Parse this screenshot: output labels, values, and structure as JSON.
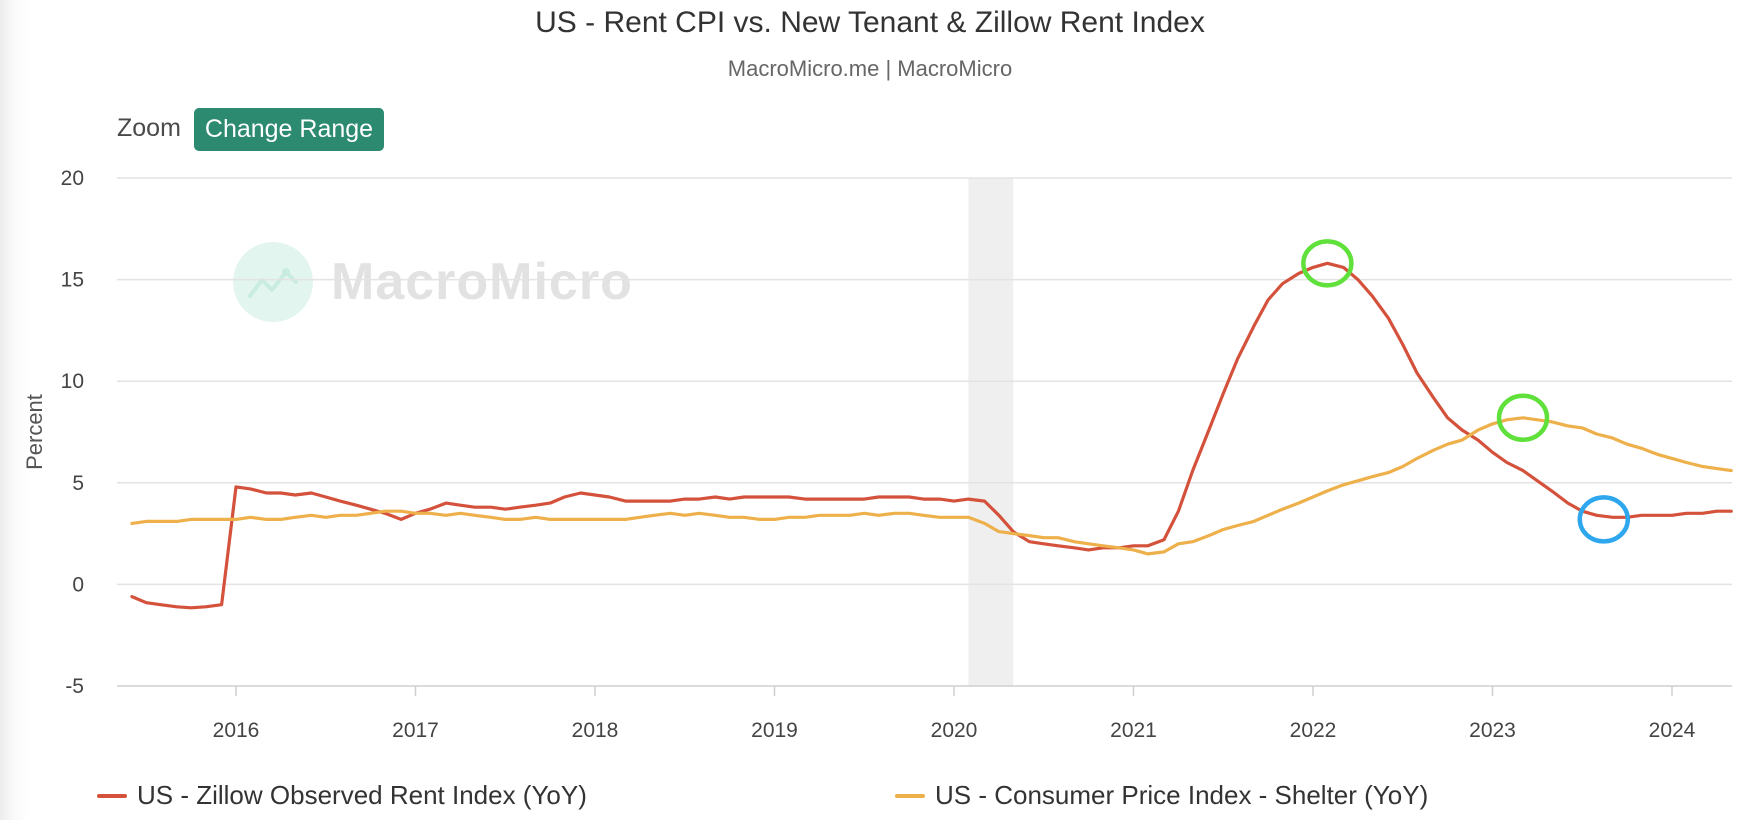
{
  "colors": {
    "zillow": "#d4513b",
    "cpi": "#eeb04a",
    "button": "#2b8a70",
    "highlight_green": "#5fe03a",
    "highlight_blue": "#2fa7ee",
    "recession_band": "#efefef"
  },
  "toolbar": {
    "zoom_label": "Zoom",
    "change_range_label": "Change Range"
  },
  "watermark": {
    "text": "MacroMicro"
  },
  "chart_data": {
    "type": "line",
    "title": "US - Rent CPI vs. New Tenant & Zillow Rent Index",
    "subtitle": "MacroMicro.me | MacroMicro",
    "xlabel": "",
    "ylabel": "Percent",
    "xlim": [
      2015.33,
      2024.33
    ],
    "ylim": [
      -5,
      20
    ],
    "yticks": [
      20,
      15,
      10,
      5,
      0,
      -5
    ],
    "xticks": [
      "2016",
      "2017",
      "2018",
      "2019",
      "2020",
      "2021",
      "2022",
      "2023",
      "2024"
    ],
    "grid": true,
    "legend_position": "bottom",
    "recession_band": [
      2020.08,
      2020.33
    ],
    "highlights": [
      {
        "series": "US - Zillow Observed Rent Index (YoY)",
        "x": 2022.08,
        "y": 15.8,
        "color": "green"
      },
      {
        "series": "US - Consumer Price Index - Shelter (YoY)",
        "x": 2023.17,
        "y": 8.2,
        "color": "green"
      },
      {
        "series": "US - Zillow Observed Rent Index (YoY)",
        "x": 2023.62,
        "y": 3.2,
        "color": "blue"
      }
    ],
    "series": [
      {
        "name": "US - Zillow Observed Rent Index (YoY)",
        "color": "#d4513b",
        "points": [
          [
            2015.42,
            -0.6
          ],
          [
            2015.5,
            -0.9
          ],
          [
            2015.58,
            -1.0
          ],
          [
            2015.67,
            -1.1
          ],
          [
            2015.75,
            -1.15
          ],
          [
            2015.83,
            -1.1
          ],
          [
            2015.92,
            -1.0
          ],
          [
            2016.0,
            4.8
          ],
          [
            2016.08,
            4.7
          ],
          [
            2016.17,
            4.5
          ],
          [
            2016.25,
            4.5
          ],
          [
            2016.33,
            4.4
          ],
          [
            2016.42,
            4.5
          ],
          [
            2016.5,
            4.3
          ],
          [
            2016.58,
            4.1
          ],
          [
            2016.67,
            3.9
          ],
          [
            2016.75,
            3.7
          ],
          [
            2016.83,
            3.5
          ],
          [
            2016.92,
            3.2
          ],
          [
            2017.0,
            3.5
          ],
          [
            2017.08,
            3.7
          ],
          [
            2017.17,
            4.0
          ],
          [
            2017.25,
            3.9
          ],
          [
            2017.33,
            3.8
          ],
          [
            2017.42,
            3.8
          ],
          [
            2017.5,
            3.7
          ],
          [
            2017.58,
            3.8
          ],
          [
            2017.67,
            3.9
          ],
          [
            2017.75,
            4.0
          ],
          [
            2017.83,
            4.3
          ],
          [
            2017.92,
            4.5
          ],
          [
            2018.0,
            4.4
          ],
          [
            2018.08,
            4.3
          ],
          [
            2018.17,
            4.1
          ],
          [
            2018.25,
            4.1
          ],
          [
            2018.33,
            4.1
          ],
          [
            2018.42,
            4.1
          ],
          [
            2018.5,
            4.2
          ],
          [
            2018.58,
            4.2
          ],
          [
            2018.67,
            4.3
          ],
          [
            2018.75,
            4.2
          ],
          [
            2018.83,
            4.3
          ],
          [
            2018.92,
            4.3
          ],
          [
            2019.0,
            4.3
          ],
          [
            2019.08,
            4.3
          ],
          [
            2019.17,
            4.2
          ],
          [
            2019.25,
            4.2
          ],
          [
            2019.33,
            4.2
          ],
          [
            2019.42,
            4.2
          ],
          [
            2019.5,
            4.2
          ],
          [
            2019.58,
            4.3
          ],
          [
            2019.67,
            4.3
          ],
          [
            2019.75,
            4.3
          ],
          [
            2019.83,
            4.2
          ],
          [
            2019.92,
            4.2
          ],
          [
            2020.0,
            4.1
          ],
          [
            2020.08,
            4.2
          ],
          [
            2020.17,
            4.1
          ],
          [
            2020.25,
            3.4
          ],
          [
            2020.33,
            2.6
          ],
          [
            2020.42,
            2.1
          ],
          [
            2020.5,
            2.0
          ],
          [
            2020.58,
            1.9
          ],
          [
            2020.67,
            1.8
          ],
          [
            2020.75,
            1.7
          ],
          [
            2020.83,
            1.8
          ],
          [
            2020.92,
            1.8
          ],
          [
            2021.0,
            1.9
          ],
          [
            2021.08,
            1.9
          ],
          [
            2021.17,
            2.2
          ],
          [
            2021.25,
            3.6
          ],
          [
            2021.33,
            5.6
          ],
          [
            2021.42,
            7.6
          ],
          [
            2021.5,
            9.4
          ],
          [
            2021.58,
            11.1
          ],
          [
            2021.67,
            12.7
          ],
          [
            2021.75,
            14.0
          ],
          [
            2021.83,
            14.8
          ],
          [
            2021.92,
            15.3
          ],
          [
            2022.0,
            15.6
          ],
          [
            2022.08,
            15.8
          ],
          [
            2022.17,
            15.6
          ],
          [
            2022.25,
            15.0
          ],
          [
            2022.33,
            14.2
          ],
          [
            2022.42,
            13.1
          ],
          [
            2022.5,
            11.8
          ],
          [
            2022.58,
            10.4
          ],
          [
            2022.67,
            9.2
          ],
          [
            2022.75,
            8.2
          ],
          [
            2022.83,
            7.6
          ],
          [
            2022.92,
            7.1
          ],
          [
            2023.0,
            6.5
          ],
          [
            2023.08,
            6.0
          ],
          [
            2023.17,
            5.6
          ],
          [
            2023.25,
            5.1
          ],
          [
            2023.33,
            4.6
          ],
          [
            2023.42,
            4.0
          ],
          [
            2023.5,
            3.6
          ],
          [
            2023.58,
            3.4
          ],
          [
            2023.67,
            3.3
          ],
          [
            2023.75,
            3.3
          ],
          [
            2023.83,
            3.4
          ],
          [
            2023.92,
            3.4
          ],
          [
            2024.0,
            3.4
          ],
          [
            2024.08,
            3.5
          ],
          [
            2024.17,
            3.5
          ],
          [
            2024.25,
            3.6
          ],
          [
            2024.33,
            3.6
          ]
        ]
      },
      {
        "name": "US - Consumer Price Index - Shelter (YoY)",
        "color": "#eeb04a",
        "points": [
          [
            2015.42,
            3.0
          ],
          [
            2015.5,
            3.1
          ],
          [
            2015.58,
            3.1
          ],
          [
            2015.67,
            3.1
          ],
          [
            2015.75,
            3.2
          ],
          [
            2015.83,
            3.2
          ],
          [
            2015.92,
            3.2
          ],
          [
            2016.0,
            3.2
          ],
          [
            2016.08,
            3.3
          ],
          [
            2016.17,
            3.2
          ],
          [
            2016.25,
            3.2
          ],
          [
            2016.33,
            3.3
          ],
          [
            2016.42,
            3.4
          ],
          [
            2016.5,
            3.3
          ],
          [
            2016.58,
            3.4
          ],
          [
            2016.67,
            3.4
          ],
          [
            2016.75,
            3.5
          ],
          [
            2016.83,
            3.6
          ],
          [
            2016.92,
            3.6
          ],
          [
            2017.0,
            3.5
          ],
          [
            2017.08,
            3.5
          ],
          [
            2017.17,
            3.4
          ],
          [
            2017.25,
            3.5
          ],
          [
            2017.33,
            3.4
          ],
          [
            2017.42,
            3.3
          ],
          [
            2017.5,
            3.2
          ],
          [
            2017.58,
            3.2
          ],
          [
            2017.67,
            3.3
          ],
          [
            2017.75,
            3.2
          ],
          [
            2017.83,
            3.2
          ],
          [
            2017.92,
            3.2
          ],
          [
            2018.0,
            3.2
          ],
          [
            2018.08,
            3.2
          ],
          [
            2018.17,
            3.2
          ],
          [
            2018.25,
            3.3
          ],
          [
            2018.33,
            3.4
          ],
          [
            2018.42,
            3.5
          ],
          [
            2018.5,
            3.4
          ],
          [
            2018.58,
            3.5
          ],
          [
            2018.67,
            3.4
          ],
          [
            2018.75,
            3.3
          ],
          [
            2018.83,
            3.3
          ],
          [
            2018.92,
            3.2
          ],
          [
            2019.0,
            3.2
          ],
          [
            2019.08,
            3.3
          ],
          [
            2019.17,
            3.3
          ],
          [
            2019.25,
            3.4
          ],
          [
            2019.33,
            3.4
          ],
          [
            2019.42,
            3.4
          ],
          [
            2019.5,
            3.5
          ],
          [
            2019.58,
            3.4
          ],
          [
            2019.67,
            3.5
          ],
          [
            2019.75,
            3.5
          ],
          [
            2019.83,
            3.4
          ],
          [
            2019.92,
            3.3
          ],
          [
            2020.0,
            3.3
          ],
          [
            2020.08,
            3.3
          ],
          [
            2020.17,
            3.0
          ],
          [
            2020.25,
            2.6
          ],
          [
            2020.33,
            2.5
          ],
          [
            2020.42,
            2.4
          ],
          [
            2020.5,
            2.3
          ],
          [
            2020.58,
            2.3
          ],
          [
            2020.67,
            2.1
          ],
          [
            2020.75,
            2.0
          ],
          [
            2020.83,
            1.9
          ],
          [
            2020.92,
            1.8
          ],
          [
            2021.0,
            1.7
          ],
          [
            2021.08,
            1.5
          ],
          [
            2021.17,
            1.6
          ],
          [
            2021.25,
            2.0
          ],
          [
            2021.33,
            2.1
          ],
          [
            2021.42,
            2.4
          ],
          [
            2021.5,
            2.7
          ],
          [
            2021.58,
            2.9
          ],
          [
            2021.67,
            3.1
          ],
          [
            2021.75,
            3.4
          ],
          [
            2021.83,
            3.7
          ],
          [
            2021.92,
            4.0
          ],
          [
            2022.0,
            4.3
          ],
          [
            2022.08,
            4.6
          ],
          [
            2022.17,
            4.9
          ],
          [
            2022.25,
            5.1
          ],
          [
            2022.33,
            5.3
          ],
          [
            2022.42,
            5.5
          ],
          [
            2022.5,
            5.8
          ],
          [
            2022.58,
            6.2
          ],
          [
            2022.67,
            6.6
          ],
          [
            2022.75,
            6.9
          ],
          [
            2022.83,
            7.1
          ],
          [
            2022.92,
            7.6
          ],
          [
            2023.0,
            7.9
          ],
          [
            2023.08,
            8.1
          ],
          [
            2023.17,
            8.2
          ],
          [
            2023.25,
            8.1
          ],
          [
            2023.33,
            8.0
          ],
          [
            2023.42,
            7.8
          ],
          [
            2023.5,
            7.7
          ],
          [
            2023.58,
            7.4
          ],
          [
            2023.67,
            7.2
          ],
          [
            2023.75,
            6.9
          ],
          [
            2023.83,
            6.7
          ],
          [
            2023.92,
            6.4
          ],
          [
            2024.0,
            6.2
          ],
          [
            2024.08,
            6.0
          ],
          [
            2024.17,
            5.8
          ],
          [
            2024.25,
            5.7
          ],
          [
            2024.33,
            5.6
          ]
        ]
      }
    ]
  }
}
